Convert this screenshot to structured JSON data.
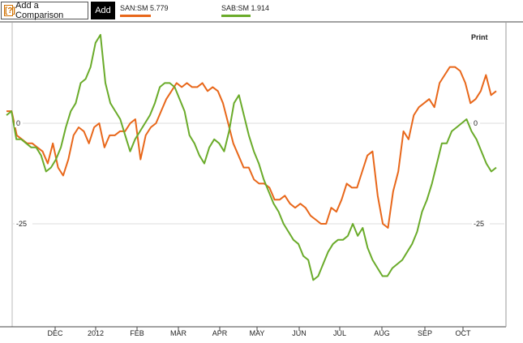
{
  "toolbar": {
    "compare_icon": "[?]",
    "compare_label": "Add a Comparison",
    "add_label": "Add"
  },
  "print_label": "Print",
  "legend": [
    {
      "label": "SAN:SM 5.779",
      "color": "#e8671a"
    },
    {
      "label": "SAB:SM 1.914",
      "color": "#6aab2a"
    }
  ],
  "chart_data": {
    "type": "line",
    "title": "",
    "xlabel": "",
    "ylabel": "",
    "x_ticks": [
      "DEC",
      "2012",
      "FEB",
      "MAR",
      "APR",
      "MAY",
      "JUN",
      "JUL",
      "AUG",
      "SEP",
      "OCT"
    ],
    "y_ticks": [
      0,
      -25
    ],
    "ylim": [
      -50,
      22
    ],
    "grid": true,
    "series": [
      {
        "name": "SAN:SM",
        "color": "#e8671a",
        "values": [
          3,
          3,
          -3,
          -4,
          -5,
          -5,
          -6,
          -7,
          -10,
          -5,
          -11,
          -13,
          -9,
          -3,
          -1,
          -2,
          -5,
          -1,
          0,
          -6,
          -3,
          -3,
          -2,
          -2,
          0,
          1,
          -9,
          -3,
          -1,
          0,
          3,
          6,
          8,
          10,
          9,
          10,
          9,
          9,
          10,
          8,
          9,
          8,
          5,
          0,
          -5,
          -8,
          -11,
          -11,
          -14,
          -15,
          -15,
          -16,
          -19,
          -19,
          -18,
          -20,
          -21,
          -20,
          -21,
          -23,
          -24,
          -25,
          -25,
          -21,
          -22,
          -19,
          -15,
          -16,
          -16,
          -12,
          -8,
          -7,
          -18,
          -25,
          -26,
          -17,
          -12,
          -2,
          -4,
          2,
          4,
          5,
          6,
          4,
          10,
          12,
          14,
          14,
          13,
          10,
          5,
          6,
          8,
          12,
          7,
          8
        ]
      },
      {
        "name": "SAB:SM",
        "color": "#6aab2a",
        "values": [
          2,
          3,
          -4,
          -4,
          -5,
          -6,
          -6,
          -8,
          -12,
          -11,
          -9,
          -6,
          -1,
          3,
          5,
          10,
          11,
          14,
          20,
          22,
          10,
          5,
          3,
          1,
          -3,
          -7,
          -4,
          -2,
          0,
          2,
          5,
          9,
          10,
          10,
          9,
          6,
          3,
          -3,
          -5,
          -8,
          -10,
          -6,
          -4,
          -5,
          -7,
          -2,
          5,
          7,
          2,
          -3,
          -7,
          -10,
          -14,
          -17,
          -20,
          -22,
          -25,
          -27,
          -29,
          -30,
          -33,
          -34,
          -39,
          -38,
          -35,
          -32,
          -30,
          -29,
          -29,
          -28,
          -25,
          -28,
          -26,
          -31,
          -34,
          -36,
          -38,
          -38,
          -36,
          -35,
          -34,
          -32,
          -30,
          -27,
          -22,
          -19,
          -15,
          -10,
          -5,
          -5,
          -2,
          -1,
          0,
          1,
          -2,
          -4,
          -7,
          -10,
          -12,
          -11
        ]
      }
    ]
  }
}
